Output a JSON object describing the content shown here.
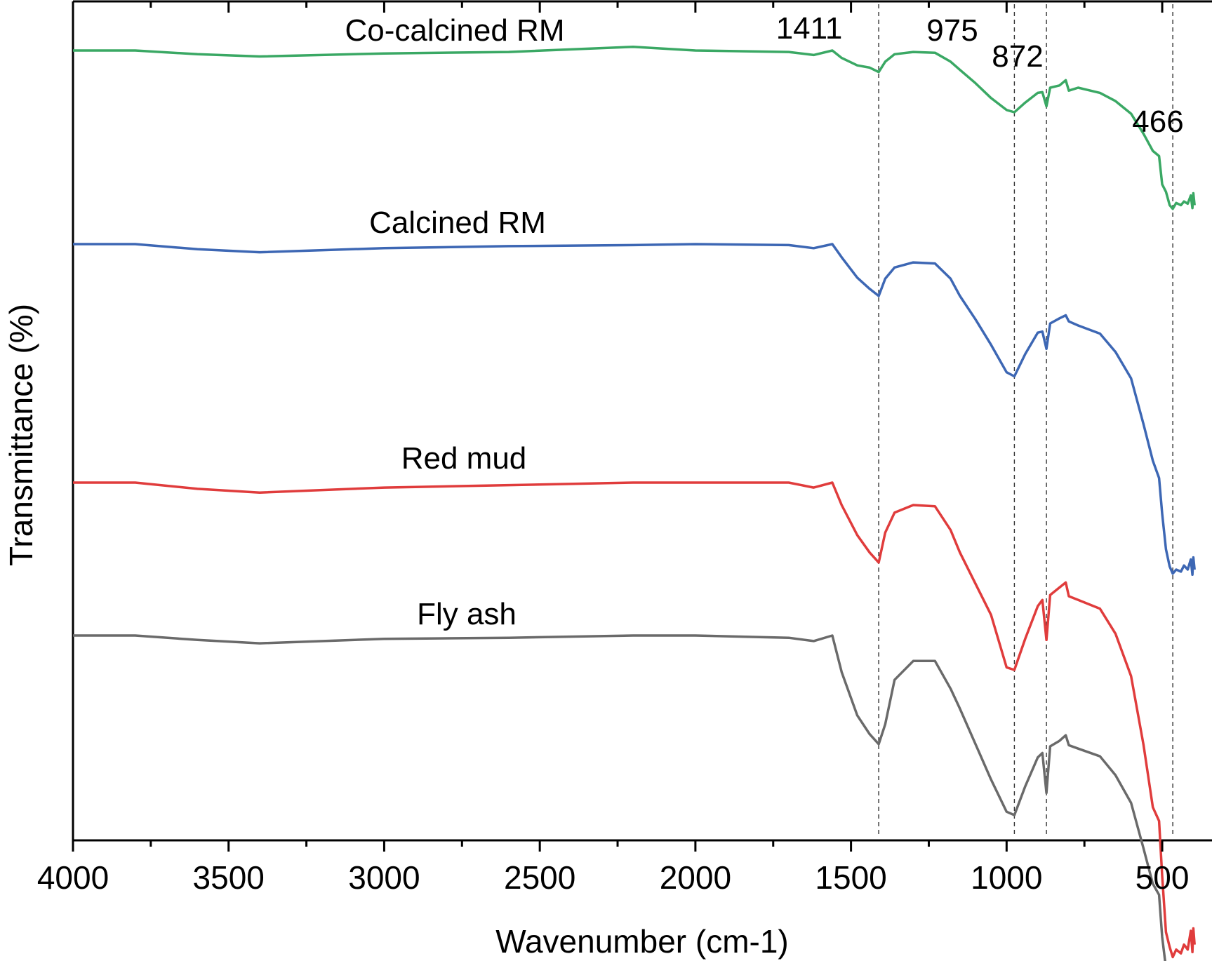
{
  "chart_data": {
    "type": "line",
    "xlabel": "Wavenumber (cm-1)",
    "ylabel": "Transmittance (%)",
    "xlim": [
      4000,
      340
    ],
    "x_ticks": [
      {
        "value": 4000,
        "label": "4000"
      },
      {
        "value": 3500,
        "label": "3500"
      },
      {
        "value": 3000,
        "label": "3000"
      },
      {
        "value": 2500,
        "label": "2500"
      },
      {
        "value": 2000,
        "label": "2000"
      },
      {
        "value": 1500,
        "label": "1500"
      },
      {
        "value": 1000,
        "label": "1000"
      },
      {
        "value": 500,
        "label": "500"
      }
    ],
    "y_ticks": "none",
    "grid": false,
    "legend": "none",
    "peak_lines": [
      {
        "x": 1411,
        "label": "1411"
      },
      {
        "x": 975,
        "label": "975"
      },
      {
        "x": 872,
        "label": "872"
      },
      {
        "x": 466,
        "label": "466"
      }
    ],
    "series": [
      {
        "name": "Co-calcined RM",
        "color": "#3aa864",
        "offset": 0,
        "points": [
          [
            4000,
            100
          ],
          [
            3800,
            100
          ],
          [
            3600,
            99.5
          ],
          [
            3400,
            99.2
          ],
          [
            3000,
            99.6
          ],
          [
            2600,
            99.8
          ],
          [
            2200,
            100.5
          ],
          [
            2000,
            100
          ],
          [
            1700,
            99.8
          ],
          [
            1620,
            99.4
          ],
          [
            1560,
            100
          ],
          [
            1530,
            99
          ],
          [
            1480,
            98
          ],
          [
            1440,
            97.7
          ],
          [
            1411,
            97.1
          ],
          [
            1390,
            98.5
          ],
          [
            1360,
            99.5
          ],
          [
            1300,
            99.8
          ],
          [
            1230,
            99.7
          ],
          [
            1180,
            98.5
          ],
          [
            1150,
            97.4
          ],
          [
            1100,
            95.6
          ],
          [
            1050,
            93.6
          ],
          [
            1000,
            92
          ],
          [
            975,
            91.7
          ],
          [
            940,
            93
          ],
          [
            900,
            94.3
          ],
          [
            885,
            94.4
          ],
          [
            872,
            92.5
          ],
          [
            860,
            95
          ],
          [
            830,
            95.3
          ],
          [
            810,
            96
          ],
          [
            800,
            94.6
          ],
          [
            770,
            95
          ],
          [
            740,
            94.7
          ],
          [
            700,
            94.3
          ],
          [
            650,
            93.2
          ],
          [
            600,
            91.5
          ],
          [
            560,
            88.8
          ],
          [
            530,
            86.5
          ],
          [
            510,
            85.8
          ],
          [
            500,
            82
          ],
          [
            488,
            81
          ],
          [
            476,
            79.2
          ],
          [
            466,
            78.7
          ],
          [
            455,
            79.5
          ],
          [
            440,
            79.2
          ],
          [
            430,
            79.7
          ],
          [
            418,
            79.4
          ],
          [
            408,
            80.5
          ],
          [
            403,
            78.8
          ],
          [
            400,
            80.8
          ],
          [
            396,
            79.2
          ]
        ]
      },
      {
        "name": "Calcined RM",
        "color": "#3d67b4",
        "offset": 0,
        "points": [
          [
            4000,
            100
          ],
          [
            3800,
            100
          ],
          [
            3600,
            99.5
          ],
          [
            3400,
            99.2
          ],
          [
            3000,
            99.6
          ],
          [
            2600,
            99.8
          ],
          [
            2200,
            99.9
          ],
          [
            2000,
            100
          ],
          [
            1700,
            99.9
          ],
          [
            1620,
            99.6
          ],
          [
            1560,
            100
          ],
          [
            1530,
            98.7
          ],
          [
            1480,
            96.7
          ],
          [
            1440,
            95.6
          ],
          [
            1411,
            94.9
          ],
          [
            1390,
            96.6
          ],
          [
            1360,
            97.7
          ],
          [
            1300,
            98.2
          ],
          [
            1230,
            98.1
          ],
          [
            1180,
            96.6
          ],
          [
            1150,
            94.9
          ],
          [
            1100,
            92.6
          ],
          [
            1050,
            90.1
          ],
          [
            1000,
            87.4
          ],
          [
            975,
            87
          ],
          [
            940,
            89.2
          ],
          [
            900,
            91.3
          ],
          [
            885,
            91.4
          ],
          [
            872,
            89.7
          ],
          [
            860,
            92.2
          ],
          [
            830,
            92.7
          ],
          [
            810,
            93
          ],
          [
            800,
            92.4
          ],
          [
            770,
            92
          ],
          [
            700,
            91.2
          ],
          [
            650,
            89.4
          ],
          [
            600,
            86.8
          ],
          [
            560,
            82.3
          ],
          [
            530,
            78.7
          ],
          [
            510,
            77
          ],
          [
            500,
            73.5
          ],
          [
            488,
            70
          ],
          [
            476,
            68.3
          ],
          [
            466,
            67.6
          ],
          [
            455,
            68
          ],
          [
            440,
            67.8
          ],
          [
            430,
            68.4
          ],
          [
            418,
            68
          ],
          [
            408,
            69
          ],
          [
            403,
            67.5
          ],
          [
            400,
            69.2
          ],
          [
            396,
            68
          ]
        ]
      },
      {
        "name": "Red mud",
        "color": "#e03c3c",
        "offset": 0,
        "points": [
          [
            4000,
            100
          ],
          [
            3800,
            100
          ],
          [
            3600,
            99.5
          ],
          [
            3400,
            99.2
          ],
          [
            3000,
            99.6
          ],
          [
            2600,
            99.8
          ],
          [
            2200,
            100
          ],
          [
            2000,
            100
          ],
          [
            1700,
            100
          ],
          [
            1620,
            99.6
          ],
          [
            1560,
            100
          ],
          [
            1530,
            98.2
          ],
          [
            1480,
            95.8
          ],
          [
            1440,
            94.4
          ],
          [
            1411,
            93.6
          ],
          [
            1390,
            96
          ],
          [
            1360,
            97.6
          ],
          [
            1300,
            98.2
          ],
          [
            1230,
            98.1
          ],
          [
            1180,
            96.2
          ],
          [
            1150,
            94.4
          ],
          [
            1100,
            91.9
          ],
          [
            1050,
            89.4
          ],
          [
            1000,
            85.2
          ],
          [
            975,
            85
          ],
          [
            940,
            87.5
          ],
          [
            900,
            90.1
          ],
          [
            885,
            90.6
          ],
          [
            872,
            87.4
          ],
          [
            860,
            91
          ],
          [
            830,
            91.6
          ],
          [
            810,
            92
          ],
          [
            800,
            90.9
          ],
          [
            770,
            90.6
          ],
          [
            700,
            89.9
          ],
          [
            650,
            87.9
          ],
          [
            600,
            84.5
          ],
          [
            560,
            79
          ],
          [
            530,
            74
          ],
          [
            510,
            72.9
          ],
          [
            500,
            68.5
          ],
          [
            488,
            64
          ],
          [
            476,
            62.8
          ],
          [
            466,
            62
          ],
          [
            455,
            62.6
          ],
          [
            440,
            62.3
          ],
          [
            430,
            63
          ],
          [
            418,
            62.6
          ],
          [
            408,
            64.1
          ],
          [
            403,
            62.4
          ],
          [
            400,
            64.3
          ],
          [
            396,
            63
          ]
        ]
      },
      {
        "name": "Fly ash",
        "color": "#6a6a6a",
        "offset": 0,
        "points": [
          [
            4000,
            100
          ],
          [
            3800,
            100
          ],
          [
            3600,
            99.6
          ],
          [
            3400,
            99.3
          ],
          [
            3000,
            99.7
          ],
          [
            2600,
            99.8
          ],
          [
            2200,
            100
          ],
          [
            2000,
            100
          ],
          [
            1700,
            99.8
          ],
          [
            1620,
            99.5
          ],
          [
            1560,
            100
          ],
          [
            1530,
            96.7
          ],
          [
            1480,
            92.8
          ],
          [
            1440,
            91.1
          ],
          [
            1411,
            90.2
          ],
          [
            1390,
            92
          ],
          [
            1360,
            96
          ],
          [
            1300,
            97.7
          ],
          [
            1230,
            97.7
          ],
          [
            1180,
            95.2
          ],
          [
            1150,
            93.4
          ],
          [
            1100,
            90.2
          ],
          [
            1050,
            87
          ],
          [
            1000,
            84.1
          ],
          [
            975,
            83.8
          ],
          [
            940,
            86.4
          ],
          [
            900,
            89
          ],
          [
            885,
            89.4
          ],
          [
            872,
            85.8
          ],
          [
            860,
            90
          ],
          [
            830,
            90.5
          ],
          [
            810,
            91
          ],
          [
            800,
            90.1
          ],
          [
            770,
            89.8
          ],
          [
            700,
            89.1
          ],
          [
            650,
            87.4
          ],
          [
            600,
            84.9
          ],
          [
            560,
            80.8
          ],
          [
            530,
            77.6
          ],
          [
            510,
            76.6
          ],
          [
            500,
            72.8
          ],
          [
            488,
            70
          ],
          [
            476,
            68.3
          ],
          [
            466,
            67.6
          ],
          [
            455,
            68.2
          ],
          [
            440,
            68
          ],
          [
            430,
            68.5
          ],
          [
            418,
            68.2
          ],
          [
            408,
            69.5
          ],
          [
            403,
            67.9
          ],
          [
            400,
            69.7
          ],
          [
            396,
            68.4
          ]
        ]
      }
    ]
  }
}
